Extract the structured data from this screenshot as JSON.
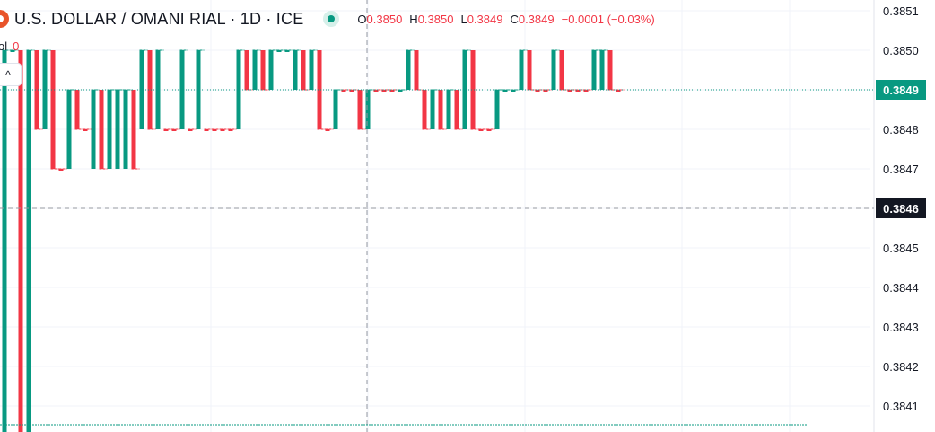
{
  "header": {
    "title": "U.S. DOLLAR / OMANI RIAL · 1D · ICE",
    "ohlc": [
      {
        "key": "O",
        "value": "0.3850"
      },
      {
        "key": "H",
        "value": "0.3850"
      },
      {
        "key": "L",
        "value": "0.3849"
      },
      {
        "key": "C",
        "value": "0.3849"
      }
    ],
    "change": "−0.0001 (−0.03%)",
    "vol_label": "ol",
    "vol_value": "0",
    "collapse_icon": "^"
  },
  "colors": {
    "up": "#089981",
    "down": "#f23645",
    "grid": "#f0f3fa",
    "axis_text": "#131722",
    "crosshair": "#9598a1"
  },
  "chart_data": {
    "type": "ohlc-bar",
    "symbol": "USD/OMR",
    "interval": "1D",
    "ylim": [
      0.38405,
      0.38515
    ],
    "yticks": [
      "0.3851",
      "0.3850",
      "0.3849",
      "0.3848",
      "0.3847",
      "0.3846",
      "0.3845",
      "0.3844",
      "0.3843",
      "0.3842",
      "0.3841"
    ],
    "last_price": "0.3849",
    "crosshair_price": "0.3846",
    "bars": [
      {
        "c": "up",
        "o": 0.3841,
        "h": 0.385,
        "l": 0.384,
        "cl": 0.385
      },
      {
        "c": "up",
        "o": 0.385,
        "h": 0.385,
        "l": 0.385,
        "cl": 0.385
      },
      {
        "c": "dn",
        "o": 0.385,
        "h": 0.385,
        "l": 0.384,
        "cl": 0.384
      },
      {
        "c": "up",
        "o": 0.384,
        "h": 0.385,
        "l": 0.384,
        "cl": 0.385
      },
      {
        "c": "dn",
        "o": 0.385,
        "h": 0.385,
        "l": 0.3848,
        "cl": 0.3848
      },
      {
        "c": "up",
        "o": 0.3848,
        "h": 0.385,
        "l": 0.3848,
        "cl": 0.385
      },
      {
        "c": "dn",
        "o": 0.385,
        "h": 0.385,
        "l": 0.3847,
        "cl": 0.3847
      },
      {
        "c": "dn",
        "o": 0.3847,
        "h": 0.3847,
        "l": 0.3847,
        "cl": 0.3847
      },
      {
        "c": "up",
        "o": 0.3847,
        "h": 0.3849,
        "l": 0.3847,
        "cl": 0.3849
      },
      {
        "c": "dn",
        "o": 0.3849,
        "h": 0.3849,
        "l": 0.3848,
        "cl": 0.3848
      },
      {
        "c": "dn",
        "o": 0.3848,
        "h": 0.3848,
        "l": 0.3848,
        "cl": 0.3848
      },
      {
        "c": "up",
        "o": 0.3847,
        "h": 0.3849,
        "l": 0.3847,
        "cl": 0.3849
      },
      {
        "c": "dn",
        "o": 0.3849,
        "h": 0.3849,
        "l": 0.3847,
        "cl": 0.3847
      },
      {
        "c": "up",
        "o": 0.3847,
        "h": 0.3849,
        "l": 0.3847,
        "cl": 0.3849
      },
      {
        "c": "up",
        "o": 0.3847,
        "h": 0.3849,
        "l": 0.3847,
        "cl": 0.3849
      },
      {
        "c": "up",
        "o": 0.3847,
        "h": 0.3849,
        "l": 0.3847,
        "cl": 0.3849
      },
      {
        "c": "dn",
        "o": 0.3849,
        "h": 0.3849,
        "l": 0.3847,
        "cl": 0.3847
      },
      {
        "c": "up",
        "o": 0.3848,
        "h": 0.385,
        "l": 0.3848,
        "cl": 0.385
      },
      {
        "c": "dn",
        "o": 0.385,
        "h": 0.385,
        "l": 0.3848,
        "cl": 0.3848
      },
      {
        "c": "up",
        "o": 0.3848,
        "h": 0.385,
        "l": 0.3848,
        "cl": 0.385
      },
      {
        "c": "dn",
        "o": 0.3848,
        "h": 0.3848,
        "l": 0.3848,
        "cl": 0.3848
      },
      {
        "c": "dn",
        "o": 0.3848,
        "h": 0.3848,
        "l": 0.3848,
        "cl": 0.3848
      },
      {
        "c": "up",
        "o": 0.3848,
        "h": 0.385,
        "l": 0.3848,
        "cl": 0.385
      },
      {
        "c": "dn",
        "o": 0.3848,
        "h": 0.3848,
        "l": 0.3848,
        "cl": 0.3848
      },
      {
        "c": "up",
        "o": 0.3848,
        "h": 0.385,
        "l": 0.3848,
        "cl": 0.385
      },
      {
        "c": "dn",
        "o": 0.3848,
        "h": 0.3848,
        "l": 0.3848,
        "cl": 0.3848
      },
      {
        "c": "dn",
        "o": 0.3848,
        "h": 0.3848,
        "l": 0.3848,
        "cl": 0.3848
      },
      {
        "c": "dn",
        "o": 0.3848,
        "h": 0.3848,
        "l": 0.3848,
        "cl": 0.3848
      },
      {
        "c": "dn",
        "o": 0.3848,
        "h": 0.3848,
        "l": 0.3848,
        "cl": 0.3848
      },
      {
        "c": "up",
        "o": 0.3848,
        "h": 0.385,
        "l": 0.3848,
        "cl": 0.385
      },
      {
        "c": "dn",
        "o": 0.385,
        "h": 0.385,
        "l": 0.3849,
        "cl": 0.3849
      },
      {
        "c": "up",
        "o": 0.3849,
        "h": 0.385,
        "l": 0.3849,
        "cl": 0.385
      },
      {
        "c": "dn",
        "o": 0.385,
        "h": 0.385,
        "l": 0.3849,
        "cl": 0.3849
      },
      {
        "c": "up",
        "o": 0.3849,
        "h": 0.385,
        "l": 0.3849,
        "cl": 0.385
      },
      {
        "c": "up",
        "o": 0.385,
        "h": 0.385,
        "l": 0.385,
        "cl": 0.385
      },
      {
        "c": "up",
        "o": 0.385,
        "h": 0.385,
        "l": 0.385,
        "cl": 0.385
      },
      {
        "c": "up",
        "o": 0.3849,
        "h": 0.385,
        "l": 0.3849,
        "cl": 0.385
      },
      {
        "c": "dn",
        "o": 0.385,
        "h": 0.385,
        "l": 0.3849,
        "cl": 0.3849
      },
      {
        "c": "up",
        "o": 0.3849,
        "h": 0.385,
        "l": 0.3849,
        "cl": 0.385
      },
      {
        "c": "dn",
        "o": 0.385,
        "h": 0.385,
        "l": 0.3848,
        "cl": 0.3848
      },
      {
        "c": "dn",
        "o": 0.3848,
        "h": 0.3848,
        "l": 0.3848,
        "cl": 0.3848
      },
      {
        "c": "up",
        "o": 0.3848,
        "h": 0.3849,
        "l": 0.3848,
        "cl": 0.3849
      },
      {
        "c": "dn",
        "o": 0.3849,
        "h": 0.3849,
        "l": 0.3849,
        "cl": 0.3849
      },
      {
        "c": "dn",
        "o": 0.3849,
        "h": 0.3849,
        "l": 0.3849,
        "cl": 0.3849
      },
      {
        "c": "dn",
        "o": 0.3849,
        "h": 0.3849,
        "l": 0.3848,
        "cl": 0.3848
      },
      {
        "c": "up",
        "o": 0.3848,
        "h": 0.3849,
        "l": 0.3848,
        "cl": 0.3849
      },
      {
        "c": "dn",
        "o": 0.3849,
        "h": 0.3849,
        "l": 0.3849,
        "cl": 0.3849
      },
      {
        "c": "dn",
        "o": 0.3849,
        "h": 0.3849,
        "l": 0.3849,
        "cl": 0.3849
      },
      {
        "c": "dn",
        "o": 0.3849,
        "h": 0.3849,
        "l": 0.3849,
        "cl": 0.3849
      },
      {
        "c": "up",
        "o": 0.3849,
        "h": 0.3849,
        "l": 0.3849,
        "cl": 0.3849
      },
      {
        "c": "up",
        "o": 0.3849,
        "h": 0.385,
        "l": 0.3849,
        "cl": 0.385
      },
      {
        "c": "dn",
        "o": 0.385,
        "h": 0.385,
        "l": 0.3849,
        "cl": 0.3849
      },
      {
        "c": "dn",
        "o": 0.3849,
        "h": 0.3849,
        "l": 0.3848,
        "cl": 0.3848
      },
      {
        "c": "up",
        "o": 0.3848,
        "h": 0.3849,
        "l": 0.3848,
        "cl": 0.3849
      },
      {
        "c": "dn",
        "o": 0.3849,
        "h": 0.3849,
        "l": 0.3848,
        "cl": 0.3848
      },
      {
        "c": "up",
        "o": 0.3848,
        "h": 0.3849,
        "l": 0.3848,
        "cl": 0.3849
      },
      {
        "c": "dn",
        "o": 0.3849,
        "h": 0.3849,
        "l": 0.3848,
        "cl": 0.3848
      },
      {
        "c": "up",
        "o": 0.3848,
        "h": 0.385,
        "l": 0.3848,
        "cl": 0.385
      },
      {
        "c": "dn",
        "o": 0.385,
        "h": 0.385,
        "l": 0.3848,
        "cl": 0.3848
      },
      {
        "c": "dn",
        "o": 0.3848,
        "h": 0.3848,
        "l": 0.3848,
        "cl": 0.3848
      },
      {
        "c": "dn",
        "o": 0.3848,
        "h": 0.3848,
        "l": 0.3848,
        "cl": 0.3848
      },
      {
        "c": "up",
        "o": 0.3848,
        "h": 0.3849,
        "l": 0.3848,
        "cl": 0.3849
      },
      {
        "c": "up",
        "o": 0.3849,
        "h": 0.3849,
        "l": 0.3849,
        "cl": 0.3849
      },
      {
        "c": "up",
        "o": 0.3849,
        "h": 0.3849,
        "l": 0.3849,
        "cl": 0.3849
      },
      {
        "c": "up",
        "o": 0.3849,
        "h": 0.385,
        "l": 0.3849,
        "cl": 0.385
      },
      {
        "c": "dn",
        "o": 0.385,
        "h": 0.385,
        "l": 0.3849,
        "cl": 0.3849
      },
      {
        "c": "dn",
        "o": 0.3849,
        "h": 0.3849,
        "l": 0.3849,
        "cl": 0.3849
      },
      {
        "c": "dn",
        "o": 0.3849,
        "h": 0.3849,
        "l": 0.3849,
        "cl": 0.3849
      },
      {
        "c": "up",
        "o": 0.3849,
        "h": 0.385,
        "l": 0.3849,
        "cl": 0.385
      },
      {
        "c": "dn",
        "o": 0.385,
        "h": 0.385,
        "l": 0.3849,
        "cl": 0.3849
      },
      {
        "c": "dn",
        "o": 0.3849,
        "h": 0.3849,
        "l": 0.3849,
        "cl": 0.3849
      },
      {
        "c": "dn",
        "o": 0.3849,
        "h": 0.3849,
        "l": 0.3849,
        "cl": 0.3849
      },
      {
        "c": "dn",
        "o": 0.3849,
        "h": 0.3849,
        "l": 0.3849,
        "cl": 0.3849
      },
      {
        "c": "up",
        "o": 0.3849,
        "h": 0.385,
        "l": 0.3849,
        "cl": 0.385
      },
      {
        "c": "up",
        "o": 0.3849,
        "h": 0.385,
        "l": 0.3849,
        "cl": 0.385
      },
      {
        "c": "dn",
        "o": 0.385,
        "h": 0.385,
        "l": 0.3849,
        "cl": 0.3849
      },
      {
        "c": "dn",
        "o": 0.3849,
        "h": 0.3849,
        "l": 0.3849,
        "cl": 0.3849
      }
    ]
  }
}
